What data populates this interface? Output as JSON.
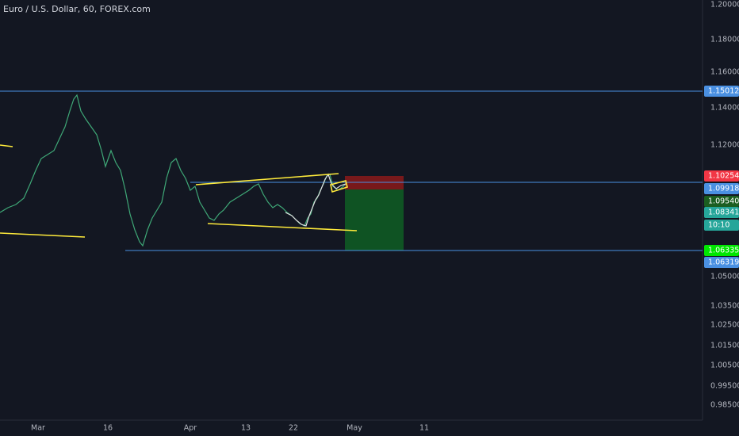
{
  "header": {
    "title": "Euro / U.S. Dollar, 60, FOREX.com"
  },
  "price_axis": {
    "labels": [
      "1.20000",
      "1.18000",
      "1.16000",
      "1.14000",
      "1.12000",
      "1.05000",
      "1.03500",
      "1.02500",
      "1.01500",
      "1.00500",
      "0.99500",
      "0.98500"
    ]
  },
  "time_axis": {
    "labels": [
      "Mar",
      "16",
      "Apr",
      "13",
      "22",
      "May",
      "11"
    ]
  },
  "price_tags": [
    {
      "text": "1.15012",
      "color": "#4a90e2"
    },
    {
      "text": "1.10254",
      "color": "#f23645"
    },
    {
      "text": "1.09918",
      "color": "#4a90e2"
    },
    {
      "text": "1.09540",
      "color": "#1b5e20"
    },
    {
      "text": "1.08341",
      "color": "#26a69a"
    },
    {
      "text": "10:10",
      "color": "#26a69a"
    },
    {
      "text": "1.06335",
      "color": "#00e600"
    },
    {
      "text": "1.06319",
      "color": "#4a90e2"
    }
  ]
}
